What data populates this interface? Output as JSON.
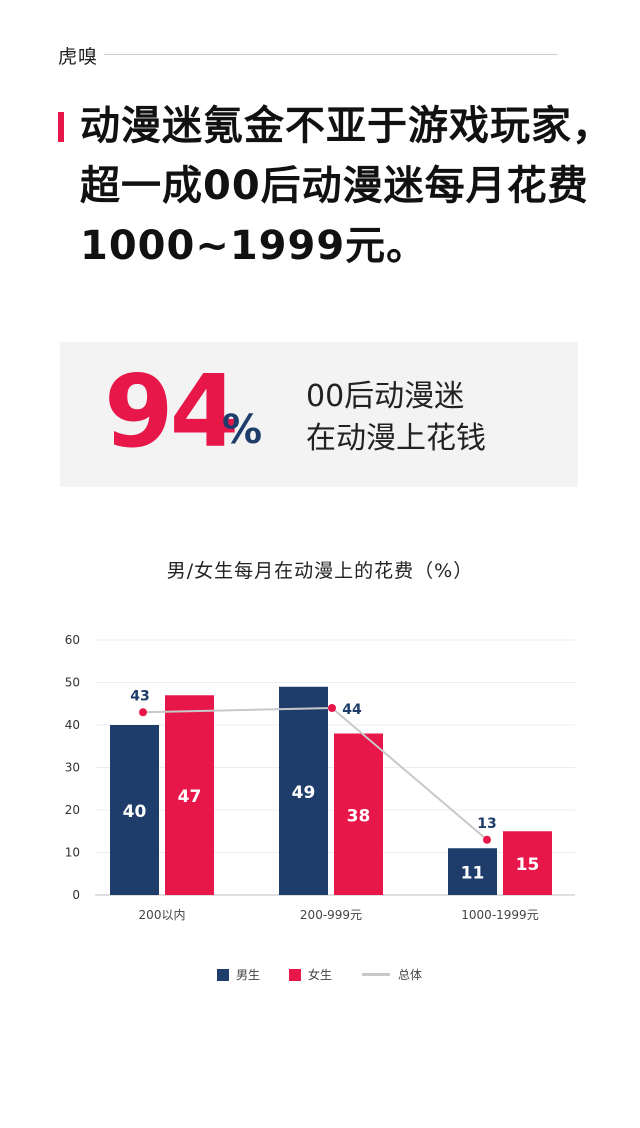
{
  "brand": {
    "logo_text": "虎嗅"
  },
  "headline": "动漫迷氪金不亚于游戏玩家，超一成00后动漫迷每月花费1000~1999元。",
  "stat": {
    "number": "94",
    "unit": "%",
    "line1": "00后动漫迷",
    "line2": "在动漫上花钱"
  },
  "colors": {
    "male": "#1e3d6b",
    "female": "#e8174a",
    "total": "#c8c8c8",
    "accent": "#e8174a"
  },
  "chart_data": {
    "type": "bar",
    "title": "男/女生每月在动漫上的花费（%）",
    "categories": [
      "200以内",
      "200-999元",
      "1000-1999元"
    ],
    "series": [
      {
        "name": "男生",
        "type": "bar",
        "values": [
          40,
          49,
          11
        ],
        "display_values": [
          40,
          49,
          11
        ]
      },
      {
        "name": "女生",
        "type": "bar",
        "values": [
          47,
          38,
          15
        ],
        "display_values": [
          47,
          38,
          15
        ]
      },
      {
        "name": "总体",
        "type": "line",
        "values": [
          43,
          44,
          13
        ]
      }
    ],
    "yticks": [
      0,
      10,
      20,
      30,
      40,
      50,
      60
    ],
    "ylim": [
      0,
      60
    ],
    "grid": true,
    "legend_position": "bottom"
  }
}
